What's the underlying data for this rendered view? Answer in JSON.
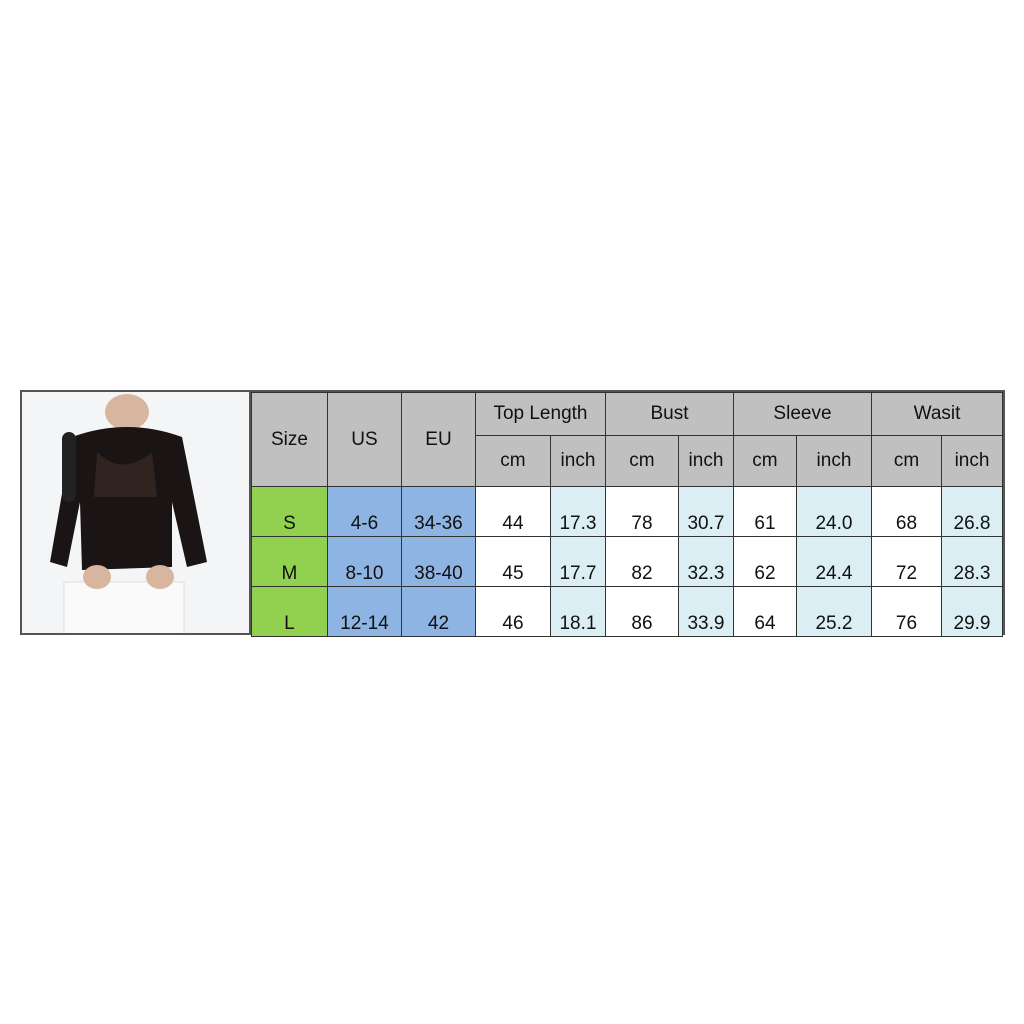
{
  "header": {
    "size": "Size",
    "us": "US",
    "eu": "EU",
    "groups": [
      "Top Length",
      "Bust",
      "Sleeve",
      "Wasit"
    ],
    "units": [
      "cm",
      "inch"
    ]
  },
  "rows": [
    {
      "size": "S",
      "us": "4-6",
      "eu": "34-36",
      "values": [
        "44",
        "17.3",
        "78",
        "30.7",
        "61",
        "24.0",
        "68",
        "26.8"
      ]
    },
    {
      "size": "M",
      "us": "8-10",
      "eu": "38-40",
      "values": [
        "45",
        "17.7",
        "82",
        "32.3",
        "62",
        "24.4",
        "72",
        "28.3"
      ]
    },
    {
      "size": "L",
      "us": "12-14",
      "eu": "42",
      "values": [
        "46",
        "18.1",
        "86",
        "33.9",
        "64",
        "25.2",
        "76",
        "29.9"
      ]
    }
  ],
  "colors": {
    "header": "#c0c0c0",
    "size": "#92d050",
    "region": "#8db4e2",
    "inch": "#daeef3"
  }
}
